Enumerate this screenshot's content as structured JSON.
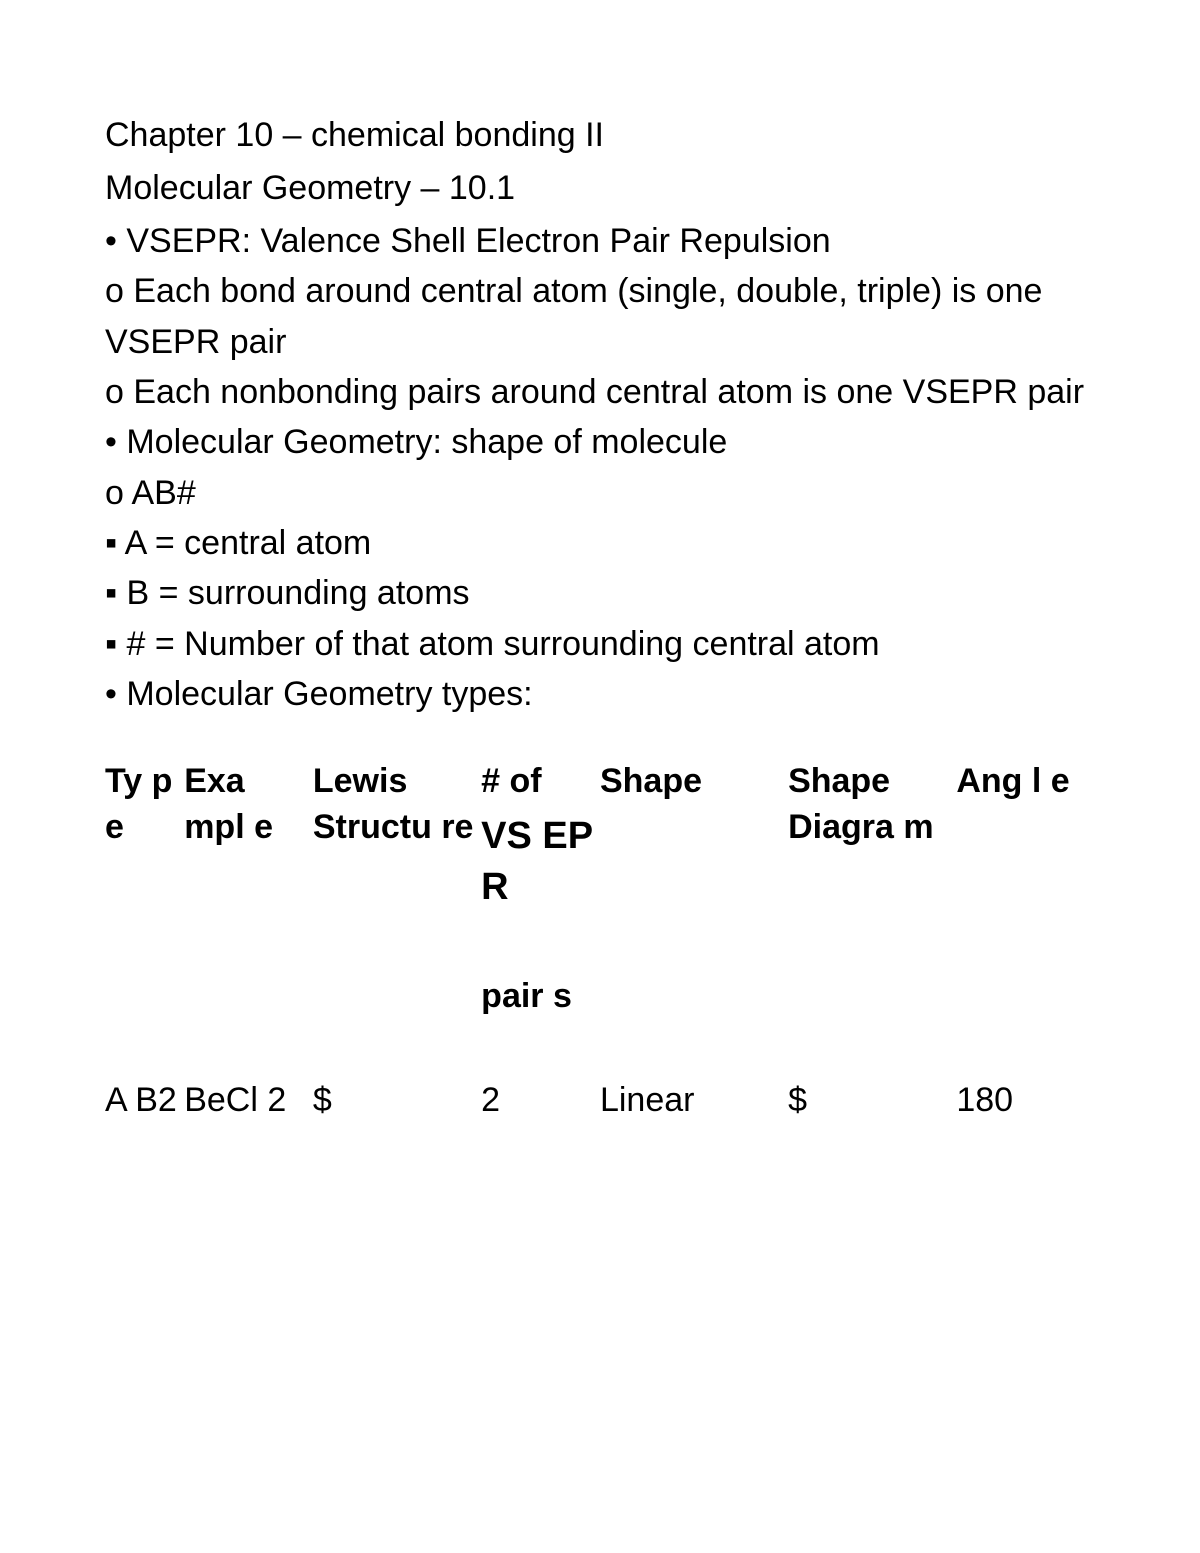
{
  "headings": {
    "chapter": "Chapter 10 – chemical bonding II",
    "section": "Molecular Geometry – 10.1"
  },
  "notes": {
    "l1": "• VSEPR: Valence Shell Electron Pair Repulsion",
    "l2": "o Each bond around central atom (single, double, triple) is one VSEPR pair",
    "l3": "o Each nonbonding pairs around central atom is one VSEPR pair",
    "l4": "• Molecular Geometry: shape of molecule",
    "l5": "o AB#",
    "l6": "▪ A = central atom",
    "l7": "▪ B = surrounding atoms",
    "l8": "▪ # = Number of that atom surrounding central atom",
    "l9": "• Molecular Geometry types:"
  },
  "table": {
    "columns": {
      "type": "Ty p e",
      "example": "Exa mpl e",
      "lewis": "Lewis Structu re",
      "vsepr_top": "# of",
      "vsepr_mid": "VS EP R",
      "vsepr_bottom": "pair s",
      "shape": "Shape",
      "diagram": "Shape Diagra m",
      "angle": "Ang l e"
    },
    "rows": [
      {
        "type": "A B2",
        "example": "BeCl 2",
        "lewis": "$",
        "vsepr": "2",
        "shape": "Linear",
        "diagram": "$",
        "angle": "180"
      }
    ],
    "col_widths_pct": {
      "type": 8,
      "example": 13,
      "lewis": 17,
      "vsepr": 12,
      "shape": 19,
      "diagram": 17,
      "angle": 14
    }
  },
  "style": {
    "background_color": "#ffffff",
    "text_color": "#000000",
    "base_font_size_pt": 26,
    "font_family": "Arial"
  }
}
